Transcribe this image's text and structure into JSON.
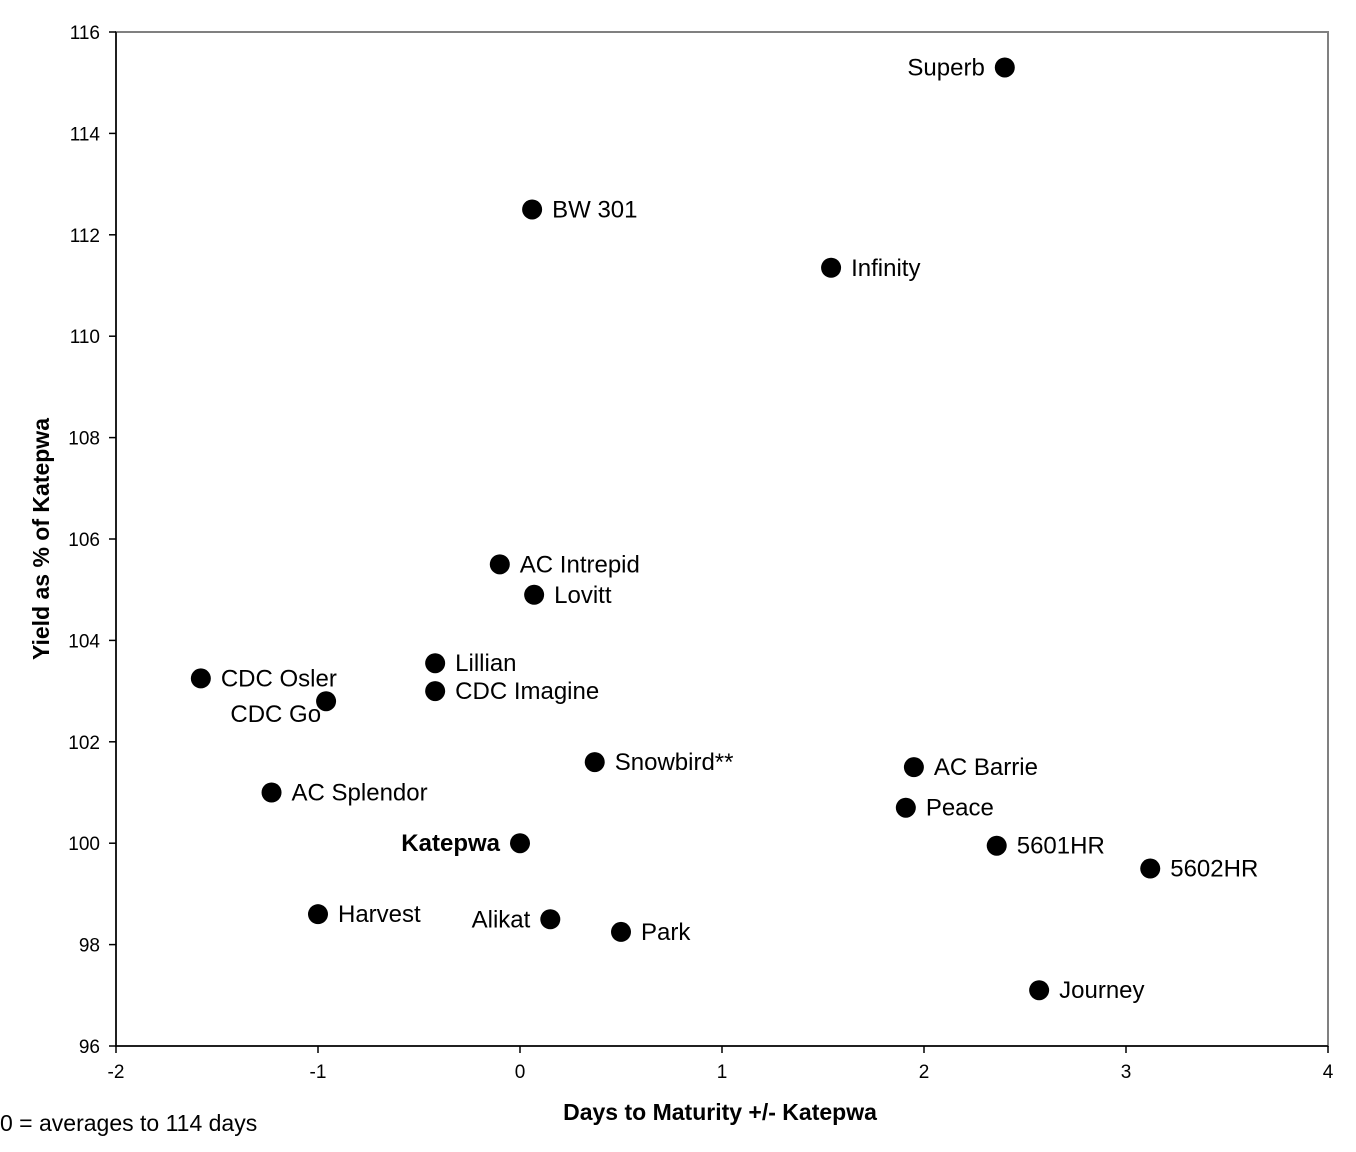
{
  "chart_data": {
    "type": "scatter",
    "title": "",
    "xlabel": "Days to Maturity +/- Katepwa",
    "ylabel": "Yield as % of Katepwa",
    "xlim": [
      -2,
      4
    ],
    "ylim": [
      96,
      116
    ],
    "x_ticks": [
      -2,
      -1,
      0,
      1,
      2,
      3,
      4
    ],
    "y_ticks": [
      96,
      98,
      100,
      102,
      104,
      106,
      108,
      110,
      112,
      114,
      116
    ],
    "grid": false,
    "legend": "none",
    "marker_color": "#000000",
    "footnote": "0 = averages to 114 days",
    "points": [
      {
        "label": "Superb",
        "x": 2.4,
        "y": 115.3,
        "label_side": "left"
      },
      {
        "label": "BW 301",
        "x": 0.06,
        "y": 112.5,
        "label_side": "right"
      },
      {
        "label": "Infinity",
        "x": 1.54,
        "y": 111.35,
        "label_side": "right"
      },
      {
        "label": "AC Intrepid",
        "x": -0.1,
        "y": 105.5,
        "label_side": "right"
      },
      {
        "label": "Lovitt",
        "x": 0.07,
        "y": 104.9,
        "label_side": "right"
      },
      {
        "label": "Lillian",
        "x": -0.42,
        "y": 103.55,
        "label_side": "right"
      },
      {
        "label": "CDC Imagine",
        "x": -0.42,
        "y": 103.0,
        "label_side": "right"
      },
      {
        "label": "CDC Osler",
        "x": -1.58,
        "y": 103.25,
        "label_side": "right"
      },
      {
        "label": "CDC Go",
        "x": -0.96,
        "y": 102.8,
        "label_side": "left-below"
      },
      {
        "label": "Snowbird**",
        "x": 0.37,
        "y": 101.6,
        "label_side": "right"
      },
      {
        "label": "AC Barrie",
        "x": 1.95,
        "y": 101.5,
        "label_side": "right"
      },
      {
        "label": "AC Splendor",
        "x": -1.23,
        "y": 101.0,
        "label_side": "right"
      },
      {
        "label": "Peace",
        "x": 1.91,
        "y": 100.7,
        "label_side": "right"
      },
      {
        "label": "Katepwa",
        "x": 0.0,
        "y": 100.0,
        "label_side": "left",
        "bold": true
      },
      {
        "label": "5601HR",
        "x": 2.36,
        "y": 99.95,
        "label_side": "right"
      },
      {
        "label": "5602HR",
        "x": 3.12,
        "y": 99.5,
        "label_side": "right"
      },
      {
        "label": "Harvest",
        "x": -1.0,
        "y": 98.6,
        "label_side": "right"
      },
      {
        "label": "Alikat",
        "x": 0.15,
        "y": 98.5,
        "label_side": "left"
      },
      {
        "label": "Park",
        "x": 0.5,
        "y": 98.25,
        "label_side": "right"
      },
      {
        "label": "Journey",
        "x": 2.57,
        "y": 97.1,
        "label_side": "right"
      }
    ]
  }
}
